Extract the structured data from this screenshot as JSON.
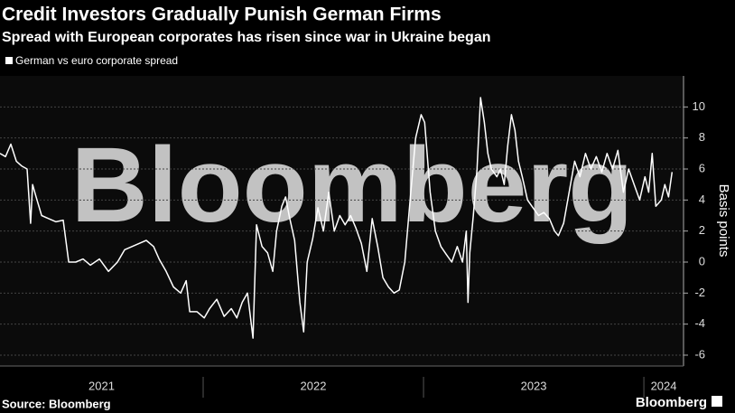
{
  "chart_data": {
    "type": "line",
    "title": "Credit Investors Gradually Punish German Firms",
    "subtitle": "Spread with European corporates has risen since war in Ukraine began",
    "y_label": "Basis points",
    "watermark": "Bloomberg",
    "source": "Source: Bloomberg",
    "logo": "Bloomberg",
    "xlim": [
      2021.078,
      2024.18
    ],
    "xticks": [
      2021,
      2022,
      2023,
      2024
    ],
    "ylim": [
      -6.7,
      12
    ],
    "yticks": [
      -6,
      -4,
      -2,
      0,
      2,
      4,
      6,
      8,
      10
    ],
    "grid": true,
    "series": [
      {
        "name": "German vs euro corporate spread",
        "color": "#ffffff",
        "x": [
          2021.078,
          2021.103,
          2021.127,
          2021.152,
          2021.176,
          2021.201,
          2021.217,
          2021.226,
          2021.242,
          2021.267,
          2021.299,
          2021.332,
          2021.365,
          2021.39,
          2021.422,
          2021.455,
          2021.488,
          2021.529,
          2021.57,
          2021.611,
          2021.644,
          2021.677,
          2021.709,
          2021.742,
          2021.775,
          2021.8,
          2021.832,
          2021.865,
          2021.898,
          2021.923,
          2021.939,
          2021.972,
          2022.005,
          2022.029,
          2022.062,
          2022.095,
          2022.128,
          2022.153,
          2022.177,
          2022.201,
          2022.226,
          2022.242,
          2022.267,
          2022.292,
          2022.316,
          2022.333,
          2022.357,
          2022.374,
          2022.39,
          2022.415,
          2022.439,
          2022.456,
          2022.472,
          2022.497,
          2022.521,
          2022.546,
          2022.57,
          2022.595,
          2022.62,
          2022.644,
          2022.669,
          2022.693,
          2022.718,
          2022.743,
          2022.767,
          2022.792,
          2022.816,
          2022.841,
          2022.866,
          2022.89,
          2022.915,
          2022.939,
          2022.964,
          2022.989,
          2023.005,
          2023.03,
          2023.054,
          2023.079,
          2023.103,
          2023.128,
          2023.153,
          2023.177,
          2023.194,
          2023.202,
          2023.21,
          2023.226,
          2023.243,
          2023.259,
          2023.276,
          2023.292,
          2023.308,
          2023.333,
          2023.349,
          2023.366,
          2023.382,
          2023.399,
          2023.415,
          2023.431,
          2023.448,
          2023.472,
          2023.497,
          2023.522,
          2023.546,
          2023.571,
          2023.595,
          2023.612,
          2023.636,
          2023.661,
          2023.686,
          2023.71,
          2023.735,
          2023.759,
          2023.784,
          2023.809,
          2023.833,
          2023.858,
          2023.882,
          2023.907,
          2023.931,
          2023.956,
          2023.981,
          2024.005,
          2024.022,
          2024.038,
          2024.054,
          2024.079,
          2024.095,
          2024.112,
          2024.128
        ],
        "values": [
          7.0,
          6.8,
          7.6,
          6.5,
          6.2,
          6.0,
          2.5,
          5.0,
          4.2,
          3.0,
          2.8,
          2.6,
          2.7,
          0.0,
          0.0,
          0.2,
          -0.2,
          0.2,
          -0.6,
          0.0,
          0.8,
          1.0,
          1.2,
          1.4,
          1.0,
          0.2,
          -0.6,
          -1.6,
          -2.0,
          -1.2,
          -3.2,
          -3.2,
          -3.6,
          -3.0,
          -2.4,
          -3.5,
          -3.0,
          -3.6,
          -2.6,
          -2.0,
          -4.9,
          2.4,
          1.0,
          0.6,
          -0.6,
          2.0,
          3.6,
          4.2,
          3.0,
          1.4,
          -2.6,
          -4.5,
          0.0,
          1.5,
          3.5,
          2.0,
          4.5,
          2.0,
          3.0,
          2.4,
          3.0,
          2.2,
          1.2,
          -0.6,
          2.8,
          1.0,
          -1.0,
          -1.6,
          -2.0,
          -1.8,
          0.0,
          4.0,
          8.0,
          9.5,
          9.0,
          4.5,
          2.0,
          1.0,
          0.5,
          0.0,
          1.0,
          0.0,
          2.0,
          -2.6,
          0.6,
          3.0,
          6.0,
          10.6,
          9.0,
          7.0,
          6.0,
          5.5,
          6.0,
          5.0,
          7.5,
          9.5,
          8.5,
          6.5,
          5.5,
          4.0,
          3.5,
          3.0,
          3.2,
          2.8,
          2.0,
          1.7,
          2.5,
          4.5,
          6.5,
          5.5,
          7.0,
          6.0,
          6.8,
          5.8,
          7.0,
          6.0,
          7.2,
          4.5,
          6.0,
          5.0,
          4.0,
          5.5,
          4.5,
          7.0,
          3.6,
          4.0,
          5.0,
          4.2,
          5.8
        ]
      }
    ]
  }
}
